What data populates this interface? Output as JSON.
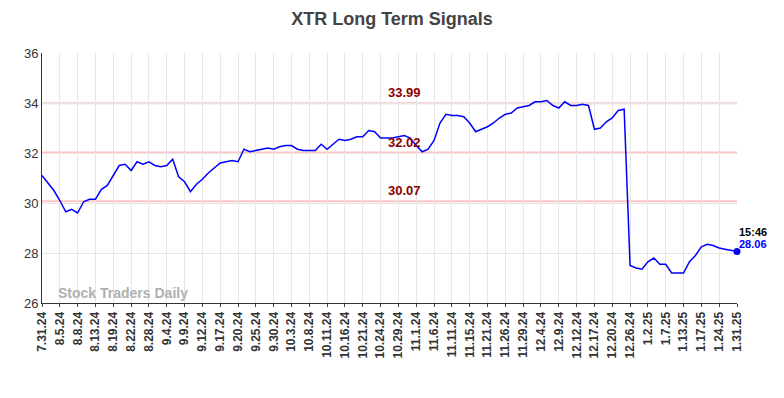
{
  "chart_data": {
    "type": "line",
    "title": "XTR Long Term Signals",
    "watermark": "Stock Traders Daily",
    "time_label": "15:46",
    "color": "#0000ff",
    "levels": [
      33.99,
      32.02,
      30.07
    ],
    "ylim": [
      26,
      36
    ],
    "yticks": [
      26,
      28,
      30,
      32,
      34,
      36
    ],
    "grid": true,
    "categories": [
      "7.31.24",
      null,
      null,
      "8.5.24",
      null,
      null,
      "8.8.24",
      null,
      null,
      "8.13.24",
      null,
      null,
      "8.19.24",
      null,
      null,
      "8.22.24",
      null,
      null,
      "8.28.24",
      null,
      null,
      "9.4.24",
      null,
      null,
      "9.9.24",
      null,
      null,
      "9.12.24",
      null,
      null,
      "9.17.24",
      null,
      null,
      "9.20.24",
      null,
      null,
      "9.25.24",
      null,
      null,
      "9.30.24",
      null,
      null,
      "10.3.24",
      null,
      null,
      "10.8.24",
      null,
      null,
      "10.11.24",
      null,
      null,
      "10.16.24",
      null,
      null,
      "10.21.24",
      null,
      null,
      "10.24.24",
      null,
      null,
      "10.29.24",
      null,
      null,
      "11.1.24",
      null,
      null,
      "11.6.24",
      null,
      null,
      "11.11.24",
      null,
      null,
      "11.15.24",
      null,
      null,
      "11.21.24",
      null,
      null,
      "11.26.24",
      null,
      null,
      "11.29.24",
      null,
      null,
      "12.4.24",
      null,
      null,
      "12.9.24",
      null,
      null,
      "12.12.24",
      null,
      null,
      "12.17.24",
      null,
      null,
      "12.20.24",
      null,
      null,
      "12.26.24",
      null,
      null,
      "1.2.25",
      null,
      null,
      "1.7.25",
      null,
      null,
      "1.13.25",
      null,
      null,
      "1.17.25",
      null,
      null,
      "1.24.25",
      null,
      null,
      "1.31.25"
    ],
    "values": [
      31.1,
      30.8,
      30.5,
      30.1,
      29.65,
      29.75,
      29.6,
      30.05,
      30.15,
      30.15,
      30.55,
      30.7,
      31.1,
      31.5,
      31.55,
      31.3,
      31.65,
      31.55,
      31.65,
      31.5,
      31.45,
      31.5,
      31.75,
      31.05,
      30.85,
      30.45,
      30.75,
      30.95,
      31.2,
      31.4,
      31.6,
      31.65,
      31.7,
      31.65,
      32.15,
      32.05,
      32.1,
      32.15,
      32.2,
      32.15,
      32.25,
      32.3,
      32.3,
      32.15,
      32.1,
      32.1,
      32.1,
      32.35,
      32.15,
      32.35,
      32.55,
      32.5,
      32.55,
      32.65,
      32.65,
      32.9,
      32.85,
      32.6,
      32.6,
      32.6,
      32.65,
      32.7,
      32.6,
      32.3,
      32.05,
      32.15,
      32.5,
      33.2,
      33.55,
      33.5,
      33.5,
      33.45,
      33.2,
      32.85,
      32.95,
      33.05,
      33.2,
      33.4,
      33.55,
      33.6,
      33.8,
      33.85,
      33.9,
      34.05,
      34.05,
      34.1,
      33.9,
      33.8,
      34.05,
      33.9,
      33.9,
      33.95,
      33.9,
      32.95,
      33.0,
      33.25,
      33.4,
      33.7,
      33.75,
      27.5,
      27.4,
      27.35,
      27.65,
      27.8,
      27.55,
      27.55,
      27.2,
      27.2,
      27.2,
      27.65,
      27.9,
      28.25,
      28.35,
      28.3,
      28.2,
      28.15,
      28.1,
      28.06
    ]
  }
}
